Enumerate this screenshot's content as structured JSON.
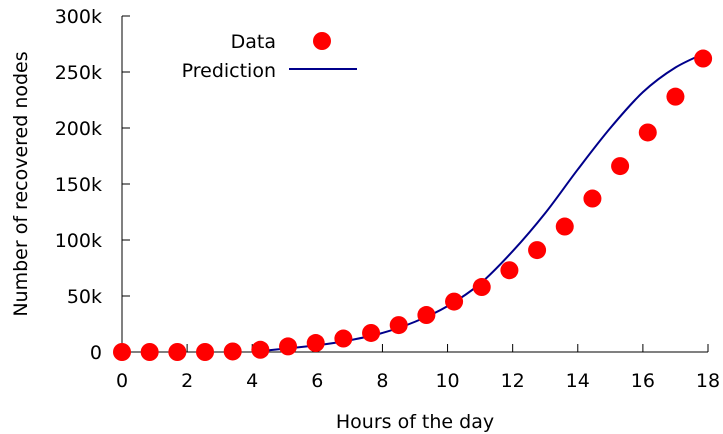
{
  "chart_data": {
    "type": "scatter",
    "xlabel": "Hours of the day",
    "ylabel": "Number of recovered nodes",
    "xlim": [
      0,
      18
    ],
    "ylim": [
      0,
      300000
    ],
    "x_ticks": [
      0,
      2,
      4,
      6,
      8,
      10,
      12,
      14,
      16,
      18
    ],
    "x_tick_labels": [
      "0",
      "2",
      "4",
      "6",
      "8",
      "10",
      "12",
      "14",
      "16",
      "18"
    ],
    "y_ticks": [
      0,
      50000,
      100000,
      150000,
      200000,
      250000,
      300000
    ],
    "y_tick_labels": [
      "0",
      "50k",
      "100k",
      "150k",
      "200k",
      "250k",
      "300k"
    ],
    "grid": false,
    "legend_position": "top-left",
    "series": [
      {
        "name": "Data",
        "kind": "scatter",
        "color": "#ff0000",
        "x": [
          0,
          0.85,
          1.7,
          2.55,
          3.4,
          4.25,
          5.1,
          5.95,
          6.8,
          7.65,
          8.5,
          9.35,
          10.2,
          11.05,
          11.9,
          12.75,
          13.6,
          14.45,
          15.3,
          16.15,
          17.0,
          17.85
        ],
        "y": [
          0,
          0,
          0,
          0,
          500,
          2000,
          5000,
          8000,
          12000,
          17000,
          24000,
          33000,
          45000,
          58000,
          73000,
          91000,
          112000,
          137000,
          166000,
          196000,
          228000,
          262000
        ]
      },
      {
        "name": "Prediction",
        "kind": "line",
        "color": "#00008b",
        "x": [
          4.0,
          5.0,
          6.0,
          7.0,
          8.0,
          9.0,
          10.0,
          11.0,
          12.0,
          13.0,
          14.0,
          15.0,
          16.0,
          17.0,
          18.0
        ],
        "y": [
          0,
          3000,
          6000,
          10500,
          17000,
          27000,
          41000,
          61000,
          90000,
          124000,
          163000,
          200000,
          232000,
          254000,
          268000
        ]
      }
    ]
  }
}
